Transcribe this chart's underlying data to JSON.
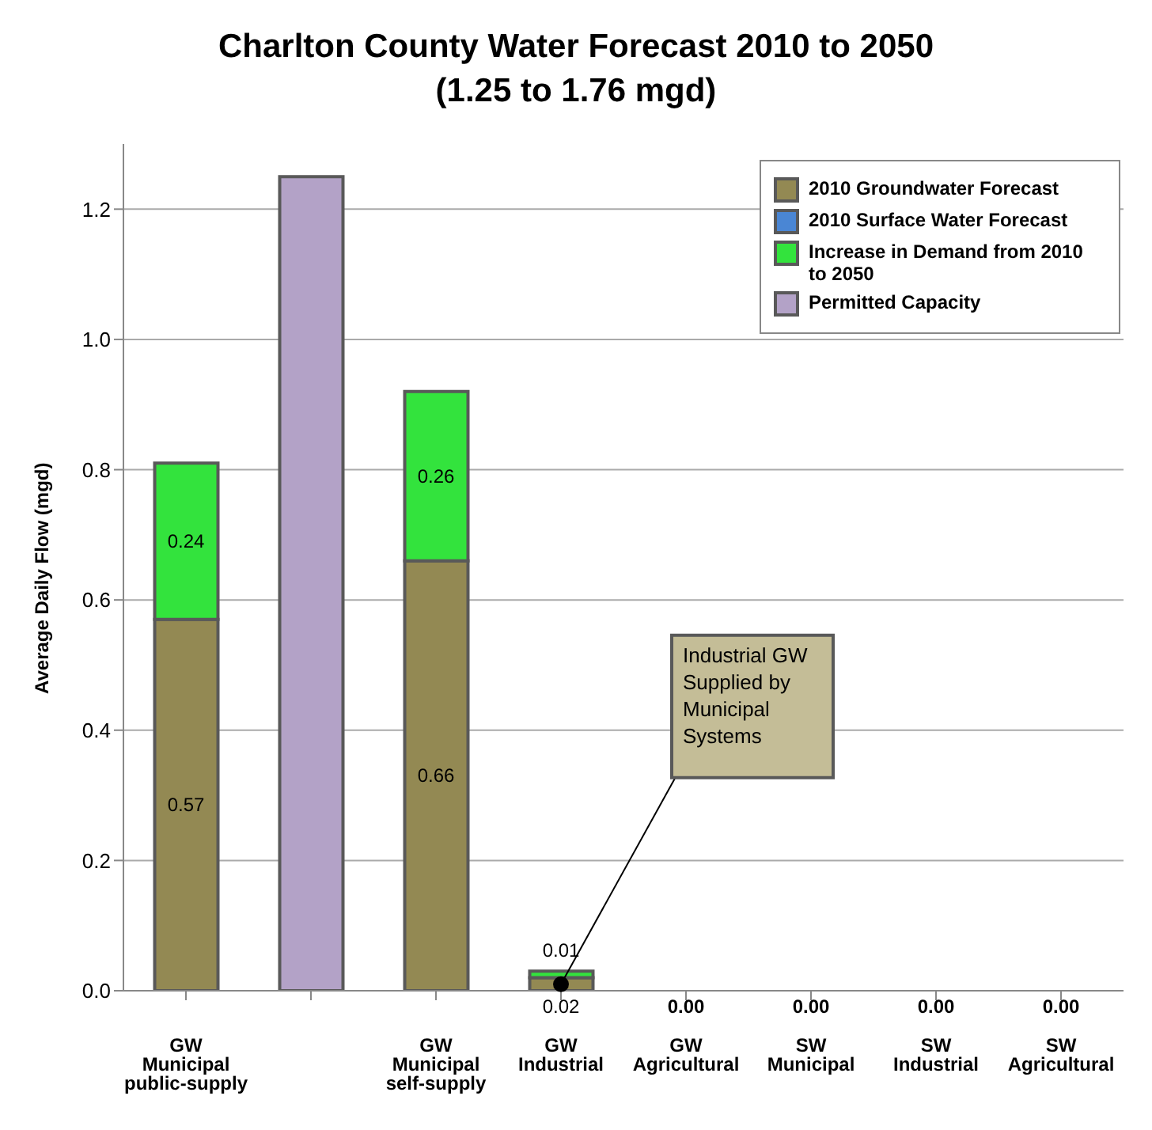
{
  "chart_data": {
    "type": "bar",
    "title": "Charlton County Water Forecast 2010 to 2050",
    "subtitle": "(1.25 to 1.76 mgd)",
    "ylabel": "Average Daily Flow (mgd)",
    "categories": [
      "GW Municipal public-supply",
      null,
      "GW Municipal self-supply",
      "GW Industrial",
      "GW Agricultural",
      "SW Municipal",
      "SW Industrial",
      "SW Agricultural"
    ],
    "series": [
      {
        "name": "2010 Groundwater Forecast",
        "color": "#938953",
        "values": [
          0.57,
          0,
          0.66,
          0.02,
          0,
          0,
          0,
          0
        ],
        "value_labels": [
          "0.57",
          null,
          "0.66",
          "0.02",
          "0.00",
          "0.00",
          "0.00",
          "0.00"
        ]
      },
      {
        "name": "2010 Surface Water Forecast",
        "color": "#4a86d4",
        "values": [
          0,
          0,
          0,
          0,
          0,
          0,
          0,
          0
        ]
      },
      {
        "name": "Increase in Demand from 2010 to 2050",
        "color": "#33e33d",
        "values": [
          0.24,
          0,
          0.26,
          0.01,
          0,
          0,
          0,
          0
        ],
        "value_labels": [
          "0.24",
          null,
          "0.26",
          "0.01",
          null,
          null,
          null,
          null
        ]
      },
      {
        "name": "Permitted Capacity",
        "color": "#b3a2c7",
        "values": [
          0,
          1.25,
          0,
          0,
          0,
          0,
          0,
          0
        ]
      }
    ],
    "stacked": true,
    "ylim": [
      0,
      1.3
    ],
    "yticks": [
      {
        "value": 0,
        "label": "0.0"
      },
      {
        "value": 0.2,
        "label": "0.2"
      },
      {
        "value": 0.4,
        "label": "0.4"
      },
      {
        "value": 0.6,
        "label": "0.6"
      },
      {
        "value": 0.8,
        "label": "0.8"
      },
      {
        "value": 1,
        "label": "1.0"
      },
      {
        "value": 1.2,
        "label": "1.2"
      }
    ],
    "grid": "y",
    "legend": "top right",
    "annotations": [
      {
        "text": "Industrial GW Supplied by Municipal Systems",
        "x": "GW Industrial",
        "y": 0.01
      }
    ]
  }
}
